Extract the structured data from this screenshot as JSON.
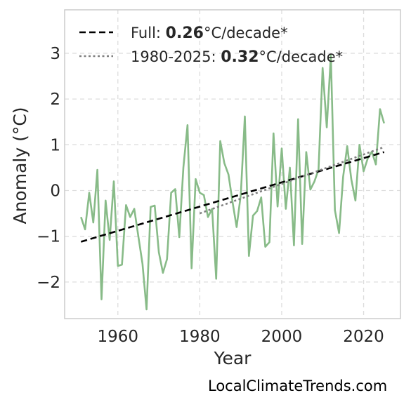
{
  "chart_data": {
    "type": "line",
    "title": "",
    "xlabel": "Year",
    "ylabel": "Anomaly (°C)",
    "xlim": [
      1947,
      2029
    ],
    "ylim": [
      -2.8,
      3.95
    ],
    "xticks": [
      1960,
      1980,
      2000,
      2020
    ],
    "yticks": [
      -2,
      -1,
      0,
      1,
      2,
      3
    ],
    "ytick_labels": [
      "−2",
      "−1",
      "0",
      "1",
      "2",
      "3"
    ],
    "grid": true,
    "legend_position": "top-left",
    "series": [
      {
        "color": "#88bb88",
        "x": [
          1951,
          1952,
          1953,
          1954,
          1955,
          1956,
          1957,
          1958,
          1959,
          1960,
          1961,
          1962,
          1963,
          1964,
          1965,
          1966,
          1967,
          1968,
          1969,
          1970,
          1971,
          1972,
          1973,
          1974,
          1975,
          1976,
          1977,
          1978,
          1979,
          1980,
          1981,
          1982,
          1983,
          1984,
          1985,
          1986,
          1987,
          1988,
          1989,
          1990,
          1991,
          1992,
          1993,
          1994,
          1995,
          1996,
          1997,
          1998,
          1999,
          2000,
          2001,
          2002,
          2003,
          2004,
          2005,
          2006,
          2007,
          2008,
          2009,
          2010,
          2011,
          2012,
          2013,
          2014,
          2015,
          2016,
          2017,
          2018,
          2019,
          2020,
          2021,
          2022,
          2023,
          2024,
          2025
        ],
        "y": [
          -0.58,
          -0.85,
          -0.05,
          -0.7,
          0.45,
          -2.38,
          -0.22,
          -1.08,
          0.2,
          -1.65,
          -1.62,
          -0.32,
          -0.58,
          -0.4,
          -1.0,
          -1.6,
          -2.6,
          -0.36,
          -0.33,
          -1.35,
          -1.8,
          -1.5,
          -0.05,
          0.03,
          -1.02,
          0.5,
          1.43,
          -1.7,
          0.25,
          -0.05,
          -0.1,
          -0.58,
          -0.4,
          -1.93,
          1.08,
          0.6,
          0.35,
          -0.25,
          -0.8,
          -0.1,
          1.62,
          -1.43,
          -0.55,
          -0.45,
          -0.15,
          -1.23,
          -1.13,
          1.25,
          -0.35,
          0.92,
          -0.4,
          0.5,
          -1.2,
          1.56,
          -1.17,
          0.84,
          0.02,
          0.2,
          0.46,
          2.68,
          1.38,
          2.95,
          -0.43,
          -0.93,
          0.3,
          0.97,
          0.25,
          -0.22,
          1.0,
          0.42,
          0.7,
          0.85,
          0.57,
          1.78,
          1.47
        ]
      },
      {
        "style": "dashed",
        "color": "#000000",
        "x": [
          1951,
          2025
        ],
        "y": [
          -1.12,
          0.84
        ]
      },
      {
        "style": "dotted",
        "color": "#808080",
        "x": [
          1980,
          2025
        ],
        "y": [
          -0.5,
          0.95
        ]
      }
    ],
    "legend": [
      {
        "style": "dashed",
        "color": "#000000",
        "prefix": "Full: ",
        "value": "0.26",
        "suffix": "°C/decade*"
      },
      {
        "style": "dotted",
        "color": "#808080",
        "prefix": "1980-2025: ",
        "value": "0.32",
        "suffix": "°C/decade*"
      }
    ]
  },
  "watermark": "LocalClimateTrends.com"
}
